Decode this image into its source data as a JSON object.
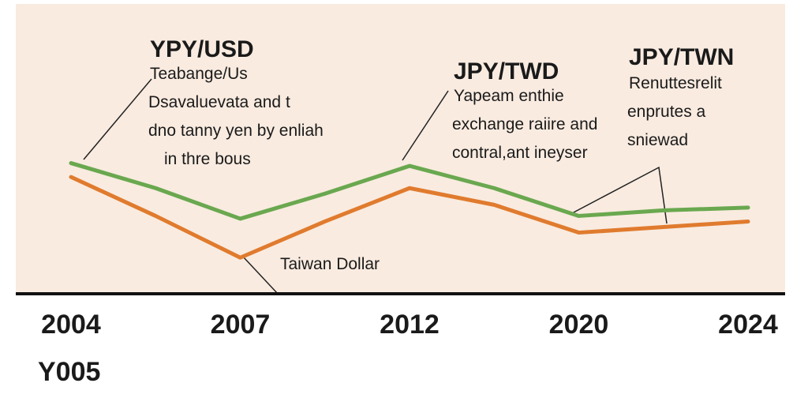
{
  "chart_data": {
    "type": "line",
    "categories": [
      "2004",
      null,
      "2007",
      null,
      "2012",
      null,
      "2020",
      null,
      "2024"
    ],
    "series": [
      {
        "color": "#6aa84f",
        "values": [
          47,
          38,
          27,
          36,
          46,
          38,
          28,
          30,
          31
        ]
      },
      {
        "color": "#e07b2e",
        "values": [
          42,
          28,
          13,
          26,
          38,
          32,
          22,
          24,
          26
        ]
      }
    ],
    "ylim": [
      0,
      100
    ],
    "extra_label": "Y005",
    "annotations": [
      {
        "title": "YPY/USD",
        "lines": [
          "Teabange/Us",
          "Dsavaluevata and t",
          "dno tanny yen by enliah",
          "in thre bous"
        ]
      },
      {
        "title": "JPY/TWD",
        "lines": [
          "Yapeam enthie",
          "exchange raiire and",
          "contral,ant ineyser"
        ]
      },
      {
        "title": "JPY/TWN",
        "lines": [
          "Renuttesrelit",
          "enprutes a",
          "sniewad"
        ]
      },
      {
        "title": "Taiwan Dollar",
        "lines": []
      }
    ]
  }
}
